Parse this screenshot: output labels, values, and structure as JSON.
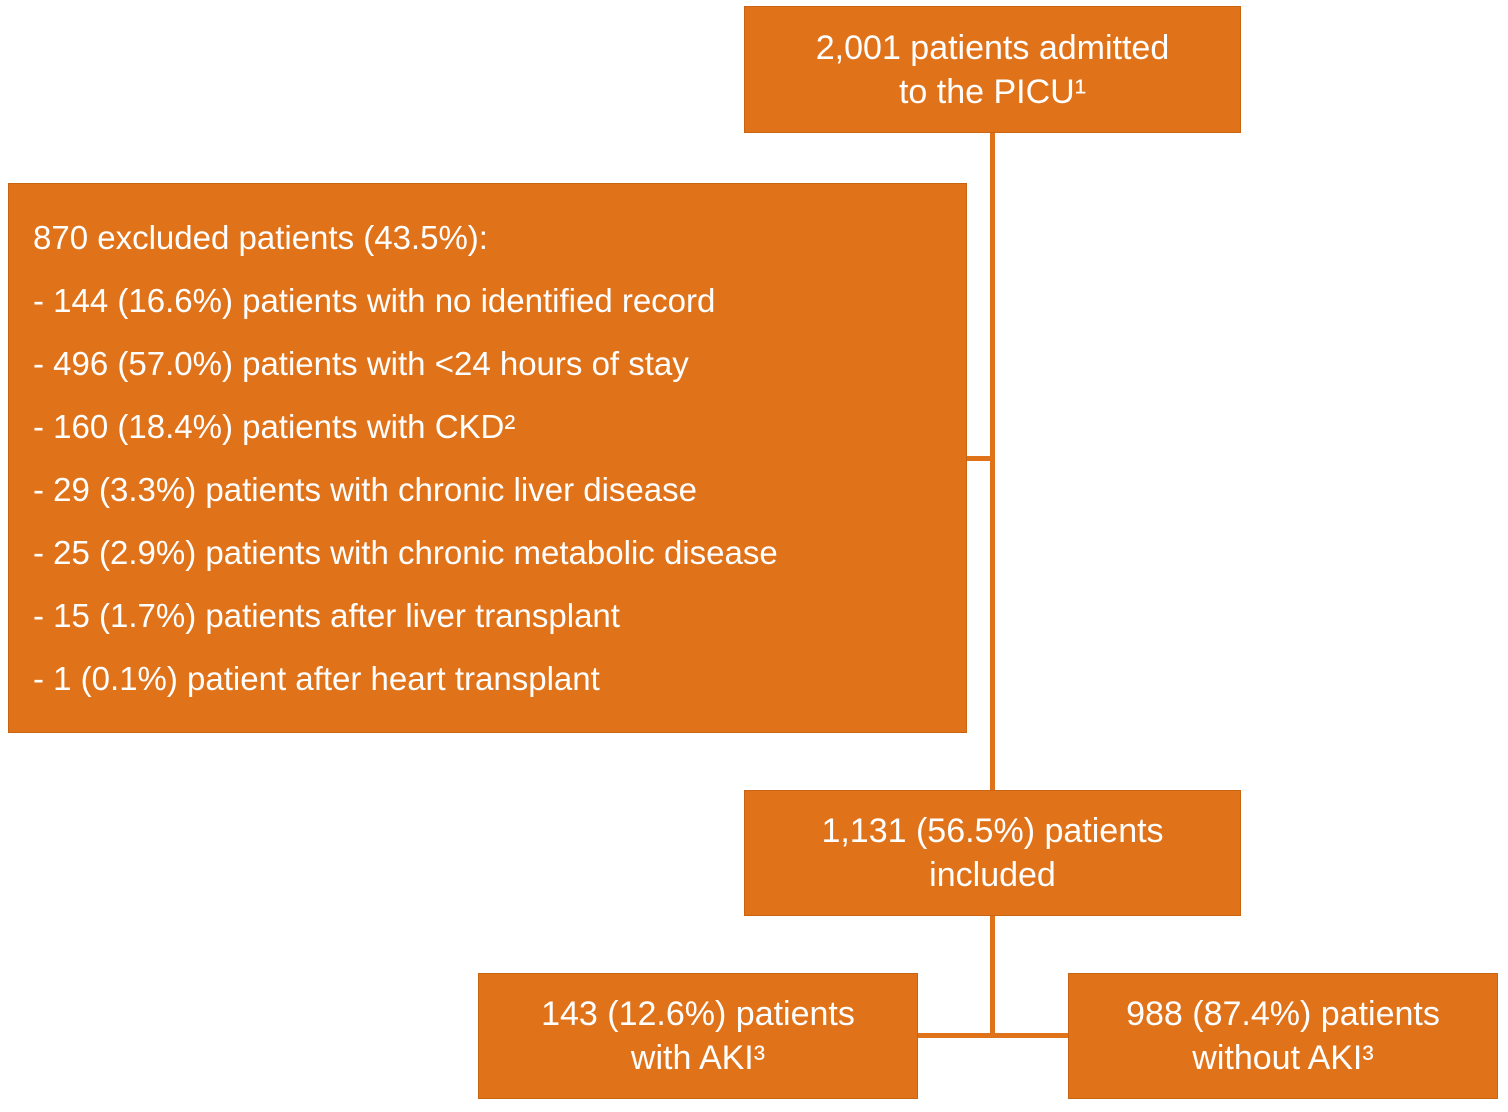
{
  "figure": {
    "type": "flowchart",
    "boxes": {
      "admitted": {
        "lines": [
          "2,001 patients admitted",
          "to the PICU¹"
        ]
      },
      "excluded": {
        "title": "870 excluded patients (43.5%):",
        "items": [
          "- 144 (16.6%) patients with no identified record",
          "- 496 (57.0%) patients with <24 hours of stay",
          "- 160 (18.4%) patients with CKD²",
          "- 29 (3.3%) patients with chronic liver disease",
          "- 25 (2.9%) patients with chronic metabolic disease",
          "- 15 (1.7%) patients after liver transplant",
          "- 1 (0.1%) patient after heart transplant"
        ]
      },
      "included": {
        "lines": [
          "1,131 (56.5%) patients",
          "included"
        ]
      },
      "aki": {
        "lines": [
          "143 (12.6%) patients",
          "with AKI³"
        ]
      },
      "no_aki": {
        "lines": [
          "988 (87.4%) patients",
          "without AKI³"
        ]
      }
    },
    "colors": {
      "box_fill": "#E0721A",
      "box_border": "#C96511",
      "text": "#FFFFFF",
      "connector": "#E0721A",
      "background": "#FFFFFF"
    }
  }
}
